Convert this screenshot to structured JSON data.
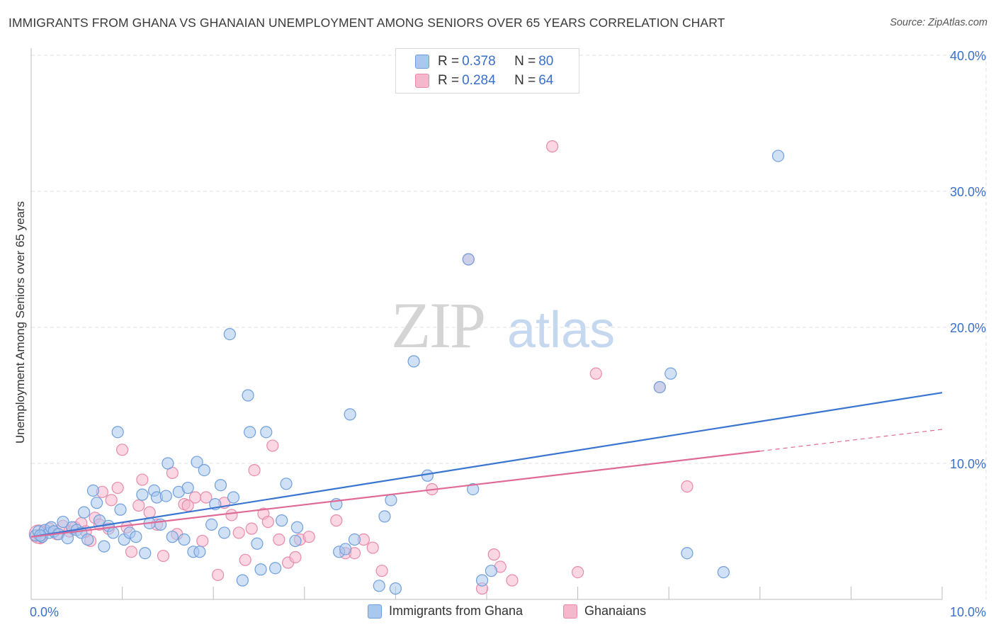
{
  "chart_data": {
    "type": "scatter",
    "title": "IMMIGRANTS FROM GHANA VS GHANAIAN UNEMPLOYMENT AMONG SENIORS OVER 65 YEARS CORRELATION CHART",
    "source": "Source: ZipAtlas.com",
    "xlabel": "",
    "ylabel": "Unemployment Among Seniors over 65 years",
    "xlim": [
      0,
      10
    ],
    "ylim": [
      0,
      40
    ],
    "x_tick_labels": [
      "0.0%",
      "10.0%"
    ],
    "y_tick_labels": [
      "10.0%",
      "20.0%",
      "30.0%",
      "40.0%"
    ],
    "y_ticks": [
      10,
      20,
      30,
      40
    ],
    "watermark": {
      "part1": "ZIP",
      "part2": "atlas"
    },
    "colors": {
      "blue_fill": "#a9c8ee",
      "blue_stroke": "#6f9fdc",
      "blue_line": "#3a75d0",
      "pink_fill": "#f5b7cc",
      "pink_stroke": "#e98aab",
      "pink_line": "#e06a96",
      "grid": "#e2e2e2",
      "axis": "#bbbbbb",
      "text_blue": "#3a70c8"
    },
    "legend": [
      {
        "r_label": "R = ",
        "r_value": "0.378",
        "n_label": "N = ",
        "n_value": "80"
      },
      {
        "r_label": "R = ",
        "r_value": "0.284",
        "n_label": "N = ",
        "n_value": "64"
      }
    ],
    "series": [
      {
        "name": "Immigrants from Ghana",
        "color": "blue",
        "trend": {
          "x0": 0.0,
          "y0": 4.6,
          "x1": 10.0,
          "y1": 15.2
        },
        "points": [
          [
            0.05,
            4.7
          ],
          [
            0.08,
            5.0
          ],
          [
            0.12,
            4.6
          ],
          [
            0.15,
            5.1
          ],
          [
            0.2,
            4.9
          ],
          [
            0.22,
            5.3
          ],
          [
            0.25,
            5.0
          ],
          [
            0.3,
            4.8
          ],
          [
            0.35,
            5.7
          ],
          [
            0.4,
            4.5
          ],
          [
            0.45,
            5.3
          ],
          [
            0.5,
            5.1
          ],
          [
            0.55,
            4.9
          ],
          [
            0.58,
            6.4
          ],
          [
            0.62,
            4.4
          ],
          [
            0.68,
            8.0
          ],
          [
            0.72,
            7.1
          ],
          [
            0.75,
            5.8
          ],
          [
            0.8,
            3.9
          ],
          [
            0.85,
            5.4
          ],
          [
            0.9,
            4.9
          ],
          [
            0.95,
            12.3
          ],
          [
            0.98,
            6.6
          ],
          [
            1.02,
            4.4
          ],
          [
            1.08,
            4.9
          ],
          [
            1.15,
            4.6
          ],
          [
            1.22,
            7.7
          ],
          [
            1.25,
            3.4
          ],
          [
            1.3,
            5.6
          ],
          [
            1.35,
            8.0
          ],
          [
            1.38,
            7.5
          ],
          [
            1.42,
            5.5
          ],
          [
            1.48,
            7.6
          ],
          [
            1.5,
            10.0
          ],
          [
            1.55,
            4.6
          ],
          [
            1.62,
            7.9
          ],
          [
            1.68,
            4.4
          ],
          [
            1.72,
            8.2
          ],
          [
            1.78,
            3.5
          ],
          [
            1.82,
            10.1
          ],
          [
            1.85,
            3.5
          ],
          [
            1.9,
            9.5
          ],
          [
            1.98,
            5.5
          ],
          [
            2.02,
            7.0
          ],
          [
            2.08,
            8.4
          ],
          [
            2.12,
            4.9
          ],
          [
            2.18,
            19.5
          ],
          [
            2.22,
            7.5
          ],
          [
            2.32,
            1.4
          ],
          [
            2.38,
            15.0
          ],
          [
            2.4,
            12.3
          ],
          [
            2.48,
            4.1
          ],
          [
            2.52,
            2.2
          ],
          [
            2.58,
            12.3
          ],
          [
            2.68,
            2.3
          ],
          [
            2.75,
            5.8
          ],
          [
            2.8,
            8.5
          ],
          [
            2.9,
            4.3
          ],
          [
            2.92,
            5.3
          ],
          [
            3.35,
            7.0
          ],
          [
            3.38,
            3.5
          ],
          [
            3.45,
            3.7
          ],
          [
            3.5,
            13.6
          ],
          [
            3.55,
            4.4
          ],
          [
            3.82,
            1.0
          ],
          [
            3.88,
            6.1
          ],
          [
            3.95,
            7.3
          ],
          [
            4.0,
            0.8
          ],
          [
            4.2,
            17.5
          ],
          [
            4.35,
            9.1
          ],
          [
            4.85,
            8.1
          ],
          [
            4.8,
            25.0
          ],
          [
            4.95,
            1.4
          ],
          [
            5.05,
            2.1
          ],
          [
            6.9,
            15.6
          ],
          [
            7.02,
            16.6
          ],
          [
            7.2,
            3.4
          ],
          [
            7.6,
            2.0
          ],
          [
            8.2,
            32.6
          ],
          [
            0.1,
            4.7
          ]
        ]
      },
      {
        "name": "Ghanaians",
        "color": "pink",
        "trend": {
          "x0": 0.0,
          "y0": 4.6,
          "x1": 8.0,
          "y1": 10.9,
          "dash_x1": 10.0,
          "dash_y1": 12.5
        },
        "points": [
          [
            0.05,
            4.7
          ],
          [
            0.1,
            4.5
          ],
          [
            0.15,
            5.0
          ],
          [
            0.2,
            5.2
          ],
          [
            0.28,
            4.8
          ],
          [
            0.35,
            5.4
          ],
          [
            0.42,
            5.0
          ],
          [
            0.48,
            5.3
          ],
          [
            0.55,
            5.6
          ],
          [
            0.6,
            5.0
          ],
          [
            0.65,
            4.3
          ],
          [
            0.7,
            6.0
          ],
          [
            0.75,
            5.5
          ],
          [
            0.78,
            7.9
          ],
          [
            0.85,
            5.2
          ],
          [
            0.88,
            7.3
          ],
          [
            0.95,
            8.2
          ],
          [
            1.0,
            11.0
          ],
          [
            1.05,
            5.3
          ],
          [
            1.1,
            3.5
          ],
          [
            1.18,
            6.9
          ],
          [
            1.22,
            8.8
          ],
          [
            1.3,
            6.4
          ],
          [
            1.38,
            5.5
          ],
          [
            1.45,
            3.2
          ],
          [
            1.55,
            9.3
          ],
          [
            1.6,
            4.8
          ],
          [
            1.68,
            7.0
          ],
          [
            1.72,
            6.9
          ],
          [
            1.8,
            7.5
          ],
          [
            1.88,
            4.3
          ],
          [
            1.92,
            7.5
          ],
          [
            2.05,
            1.8
          ],
          [
            2.12,
            7.1
          ],
          [
            2.2,
            6.2
          ],
          [
            2.28,
            4.9
          ],
          [
            2.35,
            2.9
          ],
          [
            2.42,
            5.2
          ],
          [
            2.45,
            9.5
          ],
          [
            2.55,
            6.3
          ],
          [
            2.6,
            5.7
          ],
          [
            2.65,
            11.3
          ],
          [
            2.72,
            4.4
          ],
          [
            2.82,
            2.7
          ],
          [
            2.9,
            3.1
          ],
          [
            2.95,
            4.4
          ],
          [
            3.05,
            4.6
          ],
          [
            3.35,
            5.8
          ],
          [
            3.45,
            3.4
          ],
          [
            3.55,
            3.4
          ],
          [
            3.65,
            4.4
          ],
          [
            3.75,
            3.8
          ],
          [
            3.85,
            2.1
          ],
          [
            4.4,
            8.1
          ],
          [
            4.95,
            0.8
          ],
          [
            5.08,
            3.3
          ],
          [
            5.15,
            2.4
          ],
          [
            5.28,
            1.4
          ],
          [
            5.72,
            33.3
          ],
          [
            6.0,
            2.0
          ],
          [
            6.2,
            16.6
          ],
          [
            6.9,
            15.6
          ],
          [
            7.2,
            8.3
          ],
          [
            4.8,
            25.0
          ]
        ]
      }
    ]
  }
}
